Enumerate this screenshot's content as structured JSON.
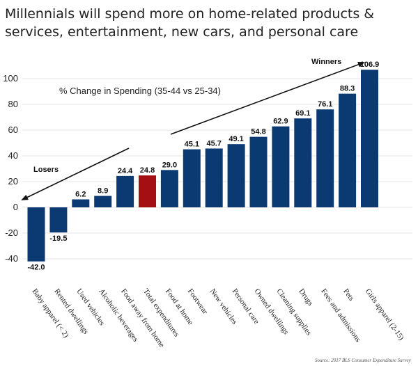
{
  "colors": {
    "bar": "#0b3a73",
    "highlight": "#a30f12",
    "grid": "#e6e6e6",
    "arrow": "#111111"
  },
  "chart_data": {
    "type": "bar",
    "title_line1": "Millennials will spend more on home-related products &",
    "title_line2": "services, entertainment, new cars, and personal care",
    "subtitle": "% Change in Spending (35-44 vs 25-34)",
    "categories": [
      "Baby apparel (< 2)",
      "Rented dwellings",
      "Used vehicles",
      "Alcoholic beverages",
      "Food away from home",
      "Total expenditures",
      "Food at home",
      "Footwear",
      "New vehicles",
      "Personal care",
      "Owned dwellings",
      "Cleaning supplies",
      "Drugs",
      "Fees and admissions",
      "Pets",
      "Girls apparel (2-15)"
    ],
    "values": [
      -42.0,
      -19.5,
      6.2,
      8.9,
      24.4,
      24.8,
      29.0,
      45.1,
      45.7,
      49.1,
      54.8,
      62.9,
      69.1,
      76.1,
      88.3,
      106.9
    ],
    "value_labels": [
      "-42.0",
      "-19.5",
      "6.2",
      "8.9",
      "24.4",
      "24.8",
      "29.0",
      "45.1",
      "45.7",
      "49.1",
      "54.8",
      "62.9",
      "69.1",
      "76.1",
      "88.3",
      "106.9"
    ],
    "highlight_category": "Total expenditures",
    "ylim": [
      -45,
      110
    ],
    "yticks": [
      -40,
      -20,
      0,
      20,
      40,
      60,
      80,
      100
    ],
    "grid": true,
    "annotations": {
      "losers": "Losers",
      "winners": "Winners"
    },
    "source": "Source: 2017 BLS Consumer Expenditure Survey"
  }
}
